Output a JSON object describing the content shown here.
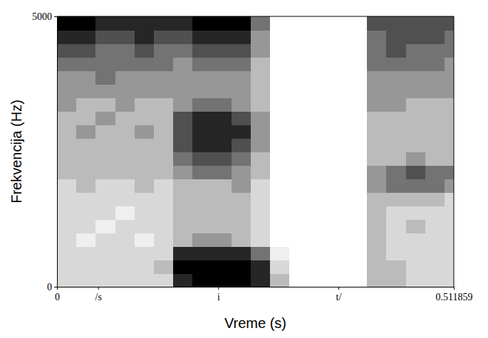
{
  "chart_data": {
    "type": "heatmap",
    "x_label": "Vreme (s)",
    "y_label": "Frekvencija (Hz)",
    "xlim": [
      0,
      0.511859
    ],
    "xticks": [
      0,
      {
        "value": 0.053,
        "label": "/s"
      },
      {
        "value": 0.208,
        "label": "i"
      },
      {
        "value": 0.363,
        "label": "t/"
      },
      0.511859
    ],
    "ylim": [
      0,
      5000
    ],
    "yticks": [
      0,
      5000
    ],
    "zlim": [
      0,
      8
    ],
    "x_bins": [
      0,
      0.025,
      0.05,
      0.075,
      0.1,
      0.125,
      0.15,
      0.175,
      0.2,
      0.225,
      0.25,
      0.275,
      0.3,
      0.325,
      0.35,
      0.375,
      0.4,
      0.425,
      0.45,
      0.475,
      0.5,
      0.511859
    ],
    "y_bins": [
      0,
      250,
      500,
      750,
      1000,
      1250,
      1500,
      1750,
      2000,
      2250,
      2500,
      2750,
      3000,
      3250,
      3500,
      3750,
      4000,
      4250,
      4500,
      4750,
      5000
    ],
    "z": [
      [
        2,
        2,
        2,
        2,
        2,
        2,
        7,
        8,
        8,
        8,
        7,
        3,
        0,
        0,
        0,
        0,
        3,
        3,
        2,
        2,
        2
      ],
      [
        2,
        2,
        2,
        2,
        2,
        3,
        8,
        8,
        8,
        8,
        7,
        2,
        0,
        0,
        0,
        0,
        3,
        3,
        2,
        2,
        2
      ],
      [
        2,
        2,
        2,
        2,
        2,
        2,
        7,
        7,
        7,
        7,
        5,
        1,
        0,
        0,
        0,
        0,
        3,
        2,
        2,
        2,
        2
      ],
      [
        2,
        1,
        2,
        2,
        1,
        2,
        3,
        4,
        4,
        3,
        2,
        0,
        0,
        0,
        0,
        0,
        3,
        2,
        2,
        2,
        2
      ],
      [
        2,
        2,
        1,
        2,
        2,
        2,
        3,
        3,
        3,
        3,
        2,
        0,
        0,
        0,
        0,
        0,
        3,
        2,
        3,
        2,
        2
      ],
      [
        2,
        2,
        2,
        1,
        2,
        2,
        3,
        3,
        3,
        3,
        2,
        0,
        0,
        0,
        0,
        0,
        3,
        2,
        2,
        2,
        2
      ],
      [
        2,
        2,
        2,
        2,
        2,
        2,
        3,
        3,
        3,
        3,
        2,
        0,
        0,
        0,
        0,
        0,
        3,
        3,
        3,
        3,
        2
      ],
      [
        2,
        3,
        2,
        2,
        3,
        2,
        3,
        3,
        3,
        4,
        2,
        0,
        0,
        0,
        0,
        0,
        4,
        5,
        5,
        5,
        4
      ],
      [
        3,
        3,
        3,
        3,
        3,
        3,
        4,
        5,
        5,
        4,
        3,
        0,
        0,
        0,
        0,
        0,
        4,
        5,
        6,
        5,
        5
      ],
      [
        3,
        3,
        3,
        3,
        3,
        3,
        5,
        6,
        6,
        5,
        3,
        0,
        0,
        0,
        0,
        0,
        3,
        3,
        4,
        3,
        3
      ],
      [
        3,
        3,
        3,
        3,
        3,
        3,
        6,
        7,
        7,
        6,
        4,
        0,
        0,
        0,
        0,
        0,
        3,
        3,
        3,
        3,
        3
      ],
      [
        3,
        4,
        3,
        3,
        4,
        3,
        6,
        7,
        7,
        7,
        4,
        0,
        0,
        0,
        0,
        0,
        3,
        3,
        3,
        3,
        3
      ],
      [
        3,
        3,
        4,
        3,
        3,
        3,
        6,
        7,
        7,
        6,
        4,
        0,
        0,
        0,
        0,
        0,
        3,
        3,
        3,
        3,
        3
      ],
      [
        4,
        3,
        3,
        4,
        3,
        3,
        4,
        5,
        5,
        4,
        3,
        0,
        0,
        0,
        0,
        0,
        4,
        4,
        3,
        3,
        3
      ],
      [
        4,
        4,
        4,
        4,
        4,
        4,
        4,
        4,
        4,
        4,
        3,
        0,
        0,
        0,
        0,
        0,
        4,
        4,
        4,
        4,
        4
      ],
      [
        4,
        4,
        5,
        4,
        4,
        4,
        4,
        4,
        4,
        4,
        3,
        0,
        0,
        0,
        0,
        0,
        4,
        4,
        4,
        4,
        4
      ],
      [
        5,
        5,
        5,
        5,
        5,
        5,
        4,
        5,
        5,
        5,
        3,
        0,
        0,
        0,
        0,
        0,
        5,
        5,
        5,
        5,
        4
      ],
      [
        6,
        6,
        5,
        5,
        6,
        5,
        5,
        6,
        6,
        6,
        4,
        0,
        0,
        0,
        0,
        0,
        5,
        6,
        5,
        5,
        5
      ],
      [
        7,
        7,
        6,
        6,
        7,
        6,
        6,
        7,
        7,
        7,
        4,
        0,
        0,
        0,
        0,
        0,
        5,
        6,
        6,
        6,
        5
      ],
      [
        8,
        8,
        7,
        7,
        7,
        7,
        7,
        8,
        8,
        8,
        5,
        0,
        0,
        0,
        0,
        0,
        6,
        6,
        6,
        6,
        6
      ]
    ]
  }
}
